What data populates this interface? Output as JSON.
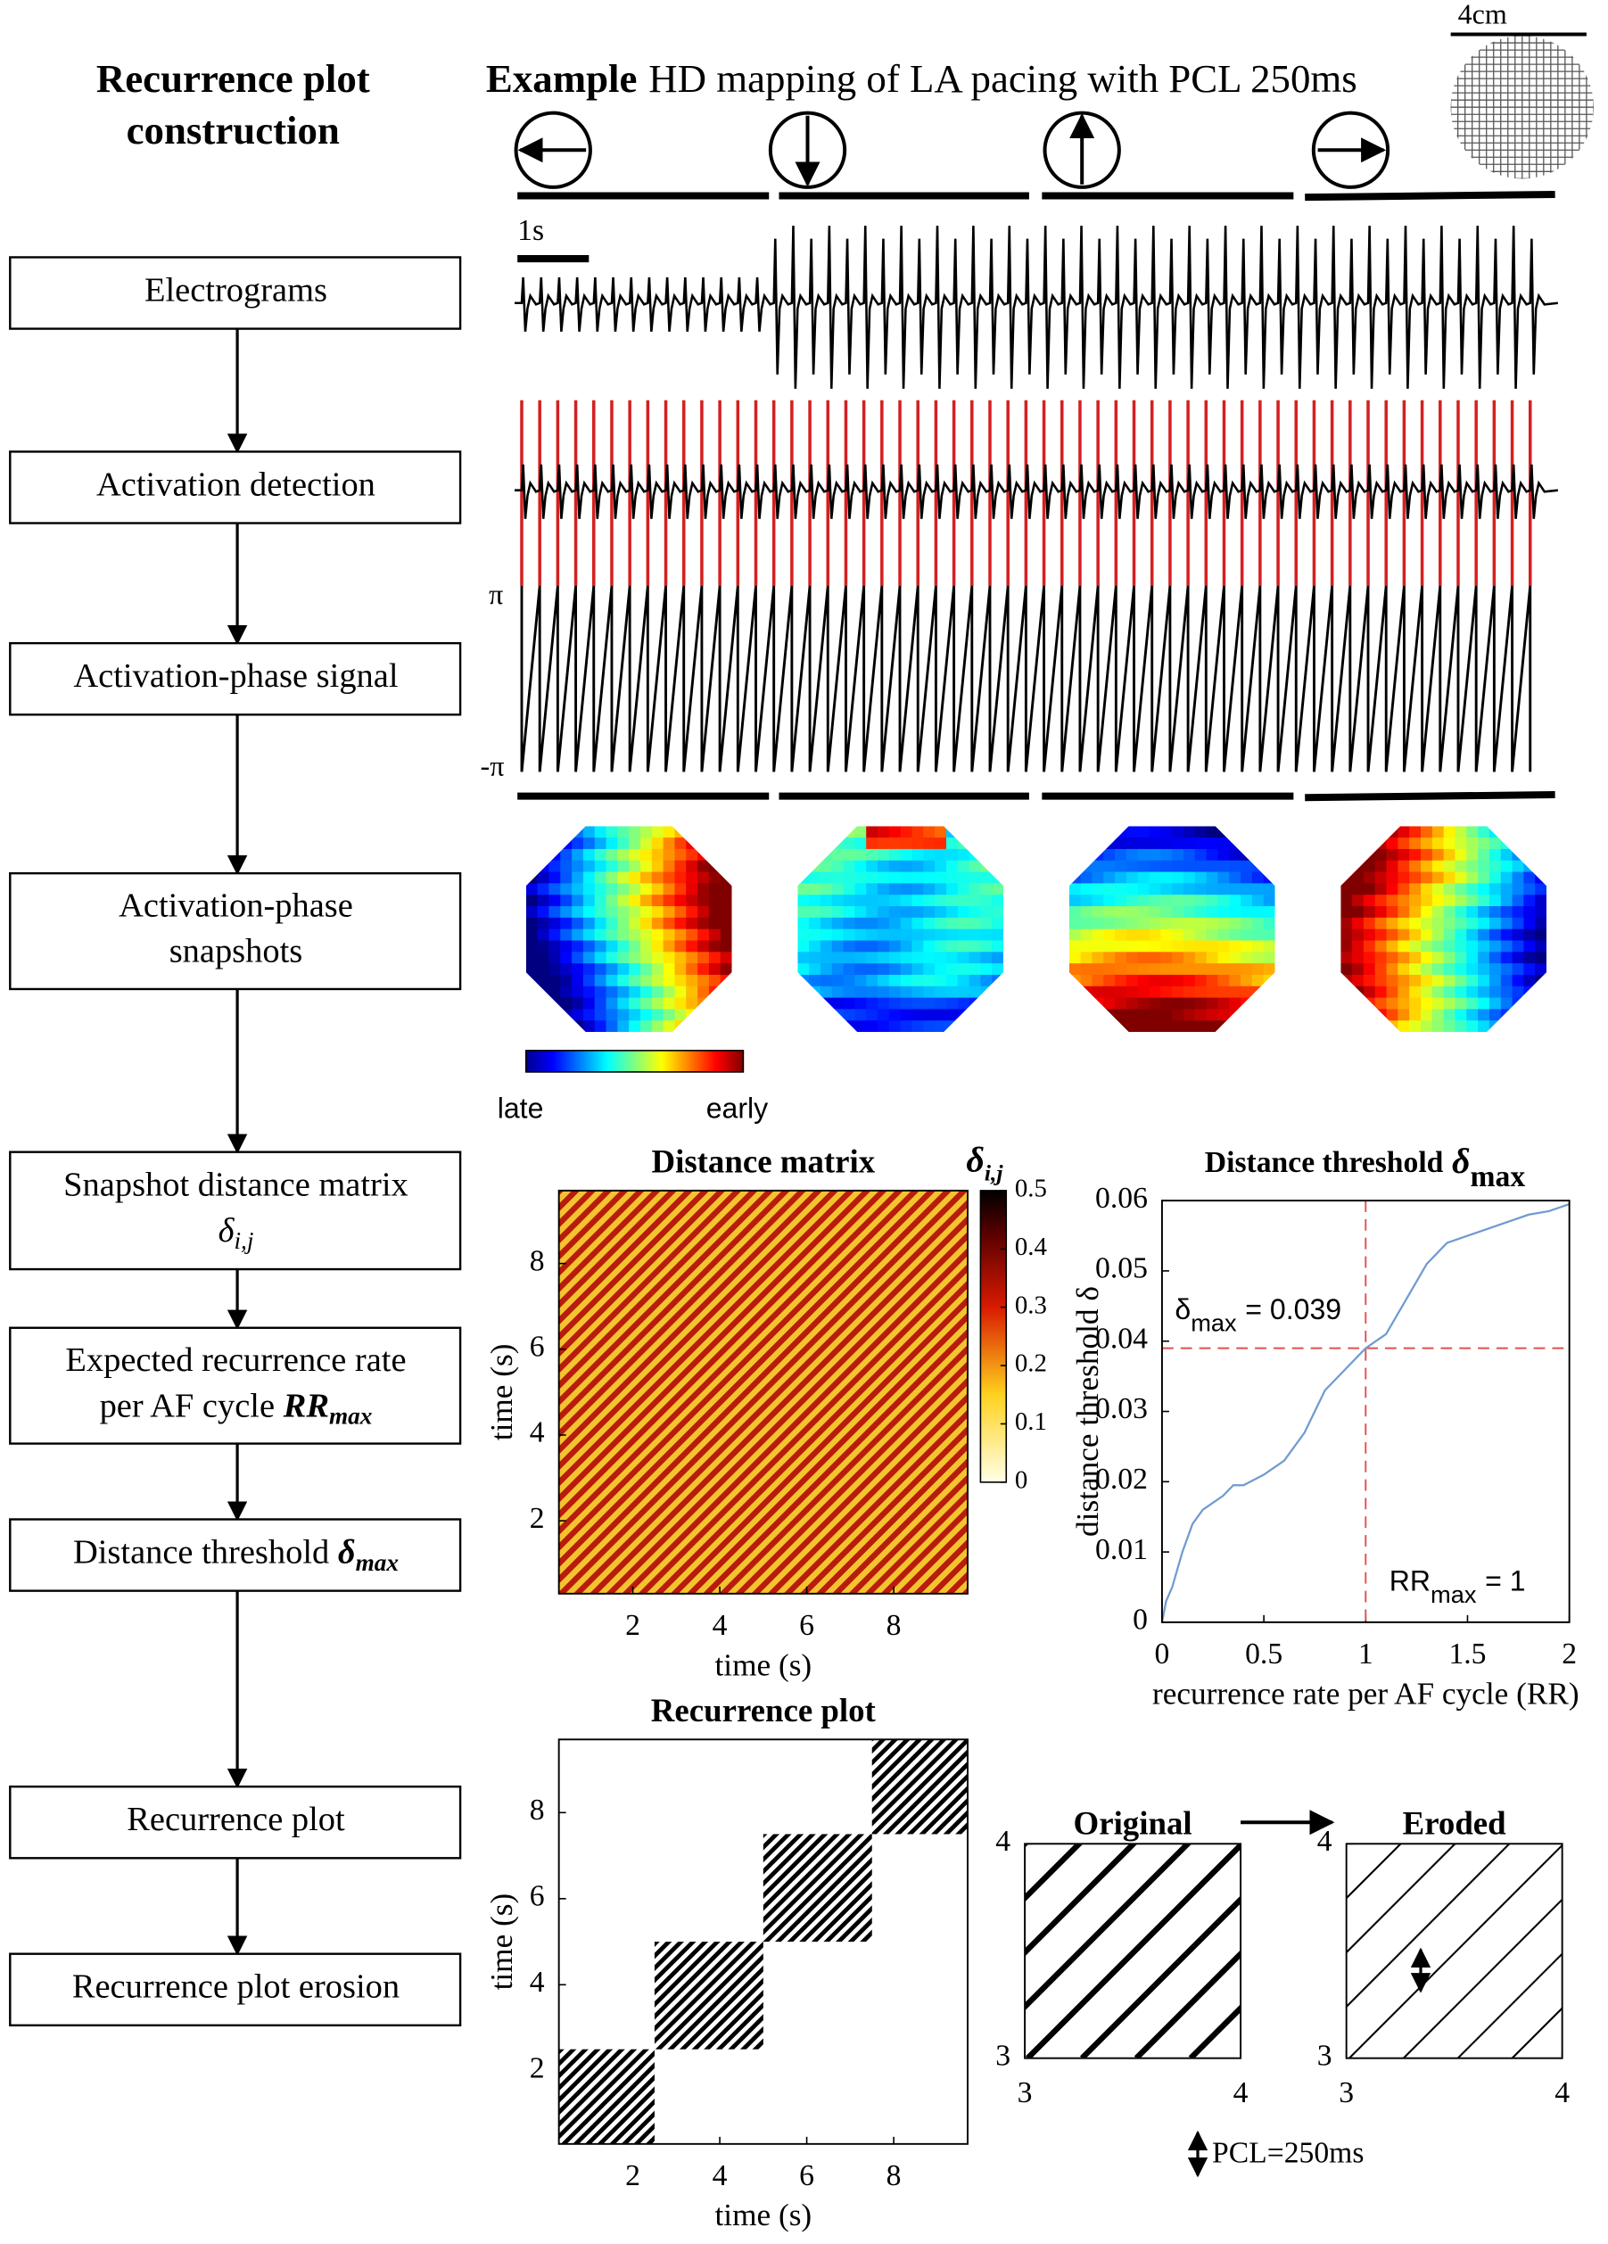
{
  "construction_title": [
    "Recurrence plot",
    "construction"
  ],
  "steps": [
    {
      "lines": [
        "Electrograms"
      ]
    },
    {
      "lines": [
        "Activation detection"
      ]
    },
    {
      "lines": [
        "Activation-phase signal"
      ]
    },
    {
      "lines": [
        "Activation-phase",
        "snapshots"
      ]
    },
    {
      "lines": [
        "Snapshot distance matrix"
      ],
      "symbol": "δ",
      "sub": "i,j"
    },
    {
      "lines": [
        "Expected recurrence rate",
        "per AF cycle"
      ],
      "symbol": "RR",
      "sub": "max"
    },
    {
      "lines": [
        "Distance threshold"
      ],
      "symbol": "δ",
      "sub": "max"
    },
    {
      "lines": [
        "Recurrence plot"
      ]
    },
    {
      "lines": [
        "Recurrence plot erosion"
      ]
    }
  ],
  "example": {
    "bold": "Example",
    "text": "HD mapping of LA pacing with PCL 250ms"
  },
  "scale_label": "4cm",
  "time_scale": "1s",
  "phase_top": "π",
  "phase_bottom": "-π",
  "colorbar_low": "late",
  "colorbar_high": "early",
  "pcl_note": "PCL=250ms",
  "chart_data": [
    {
      "type": "heatmap",
      "title": "Distance matrix",
      "xlabel": "time (s)",
      "ylabel": "time (s)",
      "xlim": [
        0.3,
        9.7
      ],
      "ylim": [
        0.3,
        9.7
      ],
      "xticks": [
        2,
        4,
        6,
        8
      ],
      "yticks": [
        2,
        4,
        6,
        8
      ],
      "colorbar": {
        "symbol": "δ",
        "sub": "i,j",
        "lim": [
          0,
          0.5
        ],
        "ticks": [
          0,
          0.1,
          0.2,
          0.3,
          0.4,
          0.5
        ]
      }
    },
    {
      "type": "line",
      "title": "Distance threshold",
      "title_symbol": "δ",
      "title_sub": "max",
      "xlabel": "recurrence rate per AF cycle (RR)",
      "ylabel": "distance threshold δ",
      "xlim": [
        0,
        2
      ],
      "ylim": [
        0,
        0.06
      ],
      "xticks": [
        0,
        0.5,
        1,
        1.5,
        2
      ],
      "yticks": [
        0,
        0.01,
        0.02,
        0.03,
        0.04,
        0.05,
        0.06
      ],
      "x": [
        0,
        0.02,
        0.05,
        0.1,
        0.15,
        0.2,
        0.3,
        0.35,
        0.4,
        0.5,
        0.6,
        0.7,
        0.8,
        0.9,
        1,
        1.1,
        1.2,
        1.3,
        1.4,
        1.5,
        1.6,
        1.7,
        1.8,
        1.9,
        2
      ],
      "series": [
        {
          "color": "#6f9bd1",
          "values": [
            0,
            0.003,
            0.005,
            0.01,
            0.014,
            0.016,
            0.018,
            0.0195,
            0.0195,
            0.021,
            0.023,
            0.027,
            0.033,
            0.036,
            0.039,
            0.041,
            0.046,
            0.051,
            0.054,
            0.055,
            0.056,
            0.057,
            0.058,
            0.0585,
            0.0595
          ]
        }
      ],
      "reference": {
        "x": 1,
        "y": 0.039,
        "color": "#e05050"
      },
      "annotations": [
        {
          "symbol": "δ",
          "sub": "max",
          "text": "= 0.039"
        },
        {
          "symbol": "RR",
          "sub": "max",
          "text": "= 1"
        }
      ]
    },
    {
      "type": "recurrence",
      "title": "Recurrence plot",
      "xlabel": "time (s)",
      "ylabel": "time (s)",
      "xlim": [
        0.3,
        9.7
      ],
      "ylim": [
        0.3,
        9.7
      ],
      "xticks": [
        2,
        4,
        6,
        8
      ],
      "yticks": [
        2,
        4,
        6,
        8
      ],
      "blocks": [
        [
          0.3,
          2.5
        ],
        [
          2.5,
          5
        ],
        [
          5,
          7.5
        ],
        [
          7.5,
          9.7
        ]
      ]
    },
    {
      "type": "stripes",
      "title": "Original",
      "xlim": [
        3,
        4
      ],
      "ylim": [
        3,
        4
      ],
      "xticks": [
        3,
        4
      ],
      "yticks": [
        3,
        4
      ]
    },
    {
      "type": "stripes",
      "title": "Eroded",
      "xlim": [
        3,
        4
      ],
      "ylim": [
        3,
        4
      ],
      "xticks": [
        3,
        4
      ],
      "yticks": [
        3,
        4
      ]
    }
  ]
}
